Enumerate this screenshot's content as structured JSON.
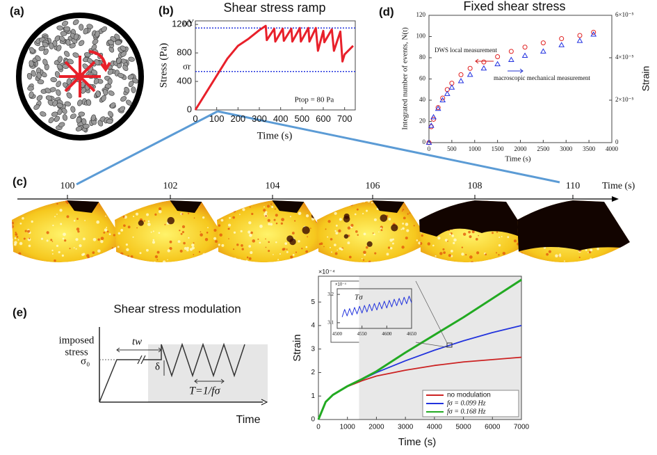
{
  "panel_a": {
    "label": "(a)"
  },
  "panel_c": {
    "label": "(c)",
    "times": [
      100,
      102,
      104,
      106,
      108,
      110
    ],
    "axis_label": "Time (s)"
  },
  "panel_e": {
    "label": "(e)",
    "title": "Shear stress modulation",
    "y_label_1": "imposed",
    "y_label_2": "stress",
    "wait_time": "tw",
    "stress_level": "σ₀",
    "amplitude": "δ",
    "period": "T=1/fσ",
    "x_label": "Time"
  },
  "chart_data": [
    {
      "type": "line",
      "panel_label": "(b)",
      "title": "Shear stress ramp",
      "x_label": "Time (s)",
      "y_label": "Stress (Pa)",
      "annotation": "Ptop = 80 Pa",
      "x": [
        0,
        100,
        150,
        200,
        250,
        300,
        330,
        335,
        370,
        375,
        410,
        415,
        450,
        455,
        490,
        495,
        530,
        535,
        565,
        575,
        600,
        605,
        640,
        650,
        680,
        690,
        700,
        740
      ],
      "series": [
        {
          "color": "#e8202a",
          "values": [
            0,
            480,
            720,
            900,
            1000,
            1120,
            1180,
            980,
            1140,
            960,
            1140,
            970,
            1140,
            960,
            1150,
            960,
            1150,
            960,
            1150,
            830,
            1110,
            950,
            1130,
            830,
            1100,
            680,
            780,
            900
          ]
        }
      ],
      "xlim": [
        0,
        750
      ],
      "ylim": [
        0,
        1250
      ],
      "xticks": [
        0,
        100,
        200,
        300,
        400,
        500,
        600,
        700
      ],
      "yticks": [
        0,
        400,
        800,
        1200
      ],
      "reference_lines": [
        {
          "label": "σY",
          "value": 1150,
          "color": "#2233dd"
        },
        {
          "label": "σr",
          "value": 540,
          "color": "#2233dd"
        }
      ]
    },
    {
      "type": "scatter",
      "panel_label": "(d)",
      "title": "Fixed shear stress",
      "x_label": "Time (s)",
      "y_label": "Integrated number of events, N(t)",
      "y2_label": "Strain",
      "x": [
        0,
        50,
        100,
        200,
        300,
        400,
        500,
        700,
        900,
        1200,
        1500,
        1800,
        2100,
        2500,
        2900,
        3300,
        3600
      ],
      "series": [
        {
          "color": "#e02020",
          "marker": "circle",
          "values": [
            0,
            15,
            22,
            33,
            42,
            50,
            56,
            64,
            70,
            76,
            81,
            86,
            90,
            94,
            98,
            101,
            104
          ]
        },
        {
          "color": "#2030e0",
          "marker": "triangle",
          "axis": "y2",
          "values": [
            0,
            8e-06,
            1.2e-05,
            1.6e-05,
            2e-05,
            2.3e-05,
            2.6e-05,
            2.9e-05,
            3.2e-05,
            3.5e-05,
            3.7e-05,
            3.9e-05,
            4.1e-05,
            4.3e-05,
            4.6e-05,
            4.8e-05,
            5.1e-05
          ]
        }
      ],
      "xlim": [
        0,
        4000
      ],
      "ylim": [
        0,
        120
      ],
      "y2lim": [
        0,
        6e-05
      ],
      "xticks": [
        0,
        500,
        1000,
        1500,
        2000,
        2500,
        3000,
        3500,
        4000
      ],
      "yticks": [
        0,
        20,
        40,
        60,
        80,
        100,
        120
      ],
      "y2ticks": [
        0,
        {
          "value": 2e-05,
          "label": "2×10⁻⁵"
        },
        {
          "value": 4e-05,
          "label": "4×10⁻⁵"
        },
        {
          "value": 6e-05,
          "label": "6×10⁻⁵"
        }
      ],
      "annotations": [
        "DWS local measurement",
        "macroscopic mechanical measurement"
      ]
    },
    {
      "type": "line",
      "x_label": "Time (s)",
      "y_label": "Strain",
      "multiplier": "×10⁻⁴",
      "x": [
        0,
        250,
        500,
        1000,
        1500,
        2000,
        3000,
        4000,
        5000,
        6000,
        7000
      ],
      "series": [
        {
          "name": "no modulation",
          "color": "#cc2222",
          "values": [
            0,
            0.75,
            1.05,
            1.4,
            1.65,
            1.85,
            2.1,
            2.3,
            2.45,
            2.55,
            2.65
          ]
        },
        {
          "name": "fσ = 0.099 Hz",
          "color": "#2233dd",
          "values": [
            0,
            0.75,
            1.05,
            1.42,
            1.7,
            2.0,
            2.5,
            2.95,
            3.35,
            3.7,
            4.0
          ]
        },
        {
          "name": "fσ = 0.168 Hz",
          "color": "#22aa22",
          "values": [
            0,
            0.75,
            1.05,
            1.42,
            1.72,
            2.05,
            2.85,
            3.6,
            4.35,
            5.15,
            5.95
          ]
        }
      ],
      "xlim": [
        0,
        7000
      ],
      "ylim": [
        0,
        6.1
      ],
      "xticks": [
        0,
        1000,
        2000,
        3000,
        4000,
        5000,
        6000,
        7000
      ],
      "yticks": [
        0,
        1,
        2,
        3,
        4,
        5
      ],
      "shade_x": [
        1400,
        7000
      ],
      "legend": "lower right"
    },
    {
      "type": "line",
      "multiplier": "×10⁻⁴",
      "annotation": "Tσ",
      "x": [
        4510,
        4515,
        4520,
        4525,
        4530,
        4535,
        4540,
        4545,
        4550,
        4555,
        4560,
        4565,
        4570,
        4575,
        4580,
        4585,
        4590,
        4595,
        4600,
        4605,
        4610,
        4615,
        4620,
        4625,
        4630,
        4635,
        4640,
        4645,
        4650
      ],
      "series": [
        {
          "color": "#2233dd",
          "values": [
            3.12,
            3.147,
            3.124,
            3.15,
            3.127,
            3.154,
            3.131,
            3.158,
            3.134,
            3.161,
            3.138,
            3.165,
            3.142,
            3.168,
            3.145,
            3.172,
            3.149,
            3.176,
            3.152,
            3.179,
            3.156,
            3.183,
            3.16,
            3.186,
            3.163,
            3.19,
            3.167,
            3.194,
            3.17
          ]
        }
      ],
      "xlim": [
        4500,
        4650
      ],
      "ylim": [
        3.08,
        3.22
      ],
      "xticks": [
        4500,
        4550,
        4600,
        4650
      ],
      "yticks": [
        3.1,
        3.2
      ]
    }
  ]
}
